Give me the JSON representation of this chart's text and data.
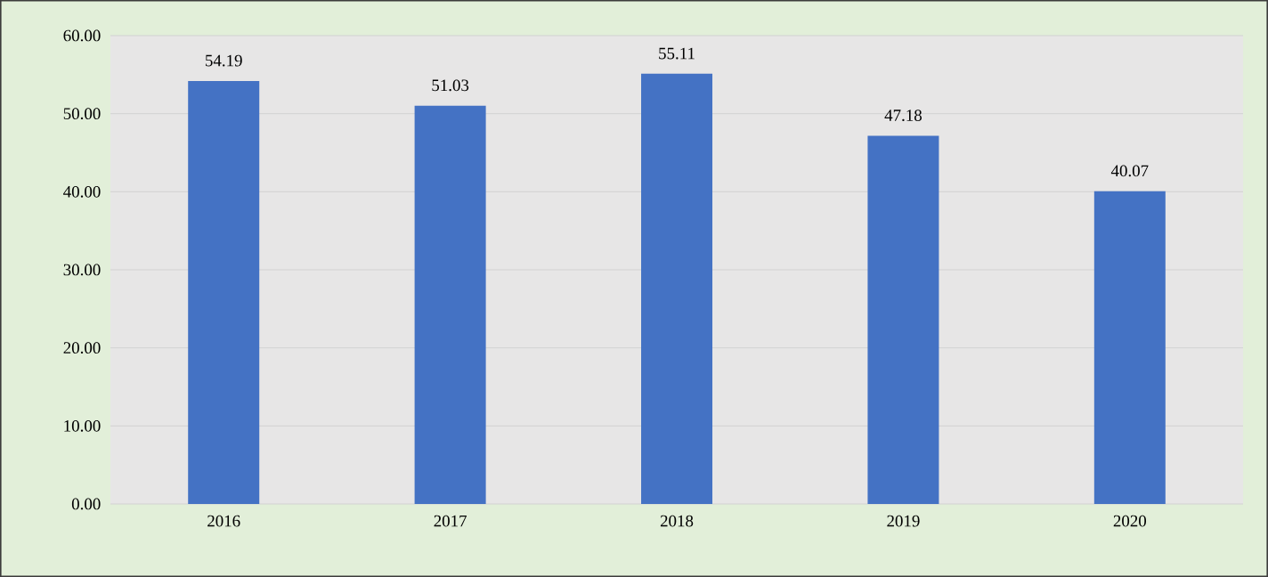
{
  "chart_data": {
    "type": "bar",
    "categories": [
      "2016",
      "2017",
      "2018",
      "2019",
      "2020"
    ],
    "values": [
      54.19,
      51.03,
      55.11,
      47.18,
      40.07
    ],
    "color": "#4472c4",
    "data_labels": true,
    "grid": "y",
    "ylim": [
      0,
      60
    ],
    "yticks": [
      {
        "value": 0,
        "label": "0.00"
      },
      {
        "value": 10,
        "label": "10.00"
      },
      {
        "value": 20,
        "label": "20.00"
      },
      {
        "value": 30,
        "label": "30.00"
      },
      {
        "value": 40,
        "label": "40.00"
      },
      {
        "value": 50,
        "label": "50.00"
      },
      {
        "value": 60,
        "label": "60.00"
      }
    ]
  }
}
